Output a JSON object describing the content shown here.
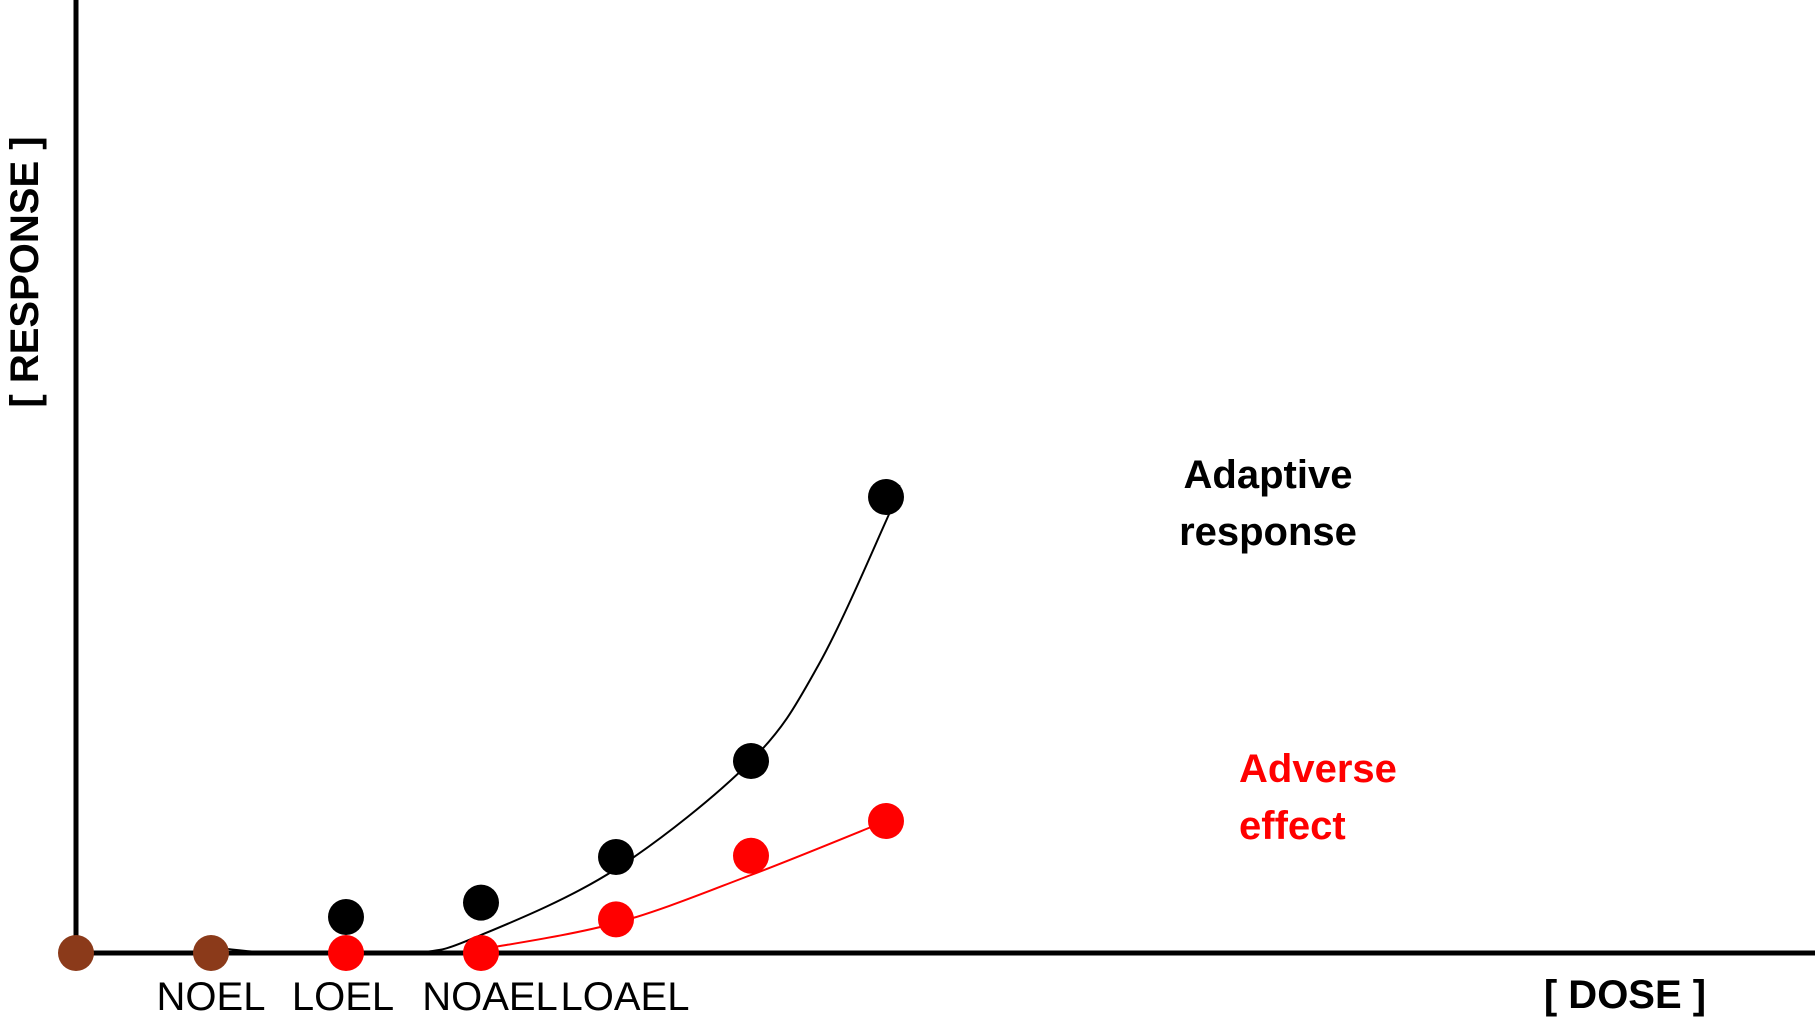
{
  "chart_data": {
    "type": "scatter",
    "title": "",
    "xlabel": "[ DOSE ]",
    "ylabel": "[ RESPONSE ]",
    "x_tick_labels": [
      {
        "label": "NOEL",
        "x": 1
      },
      {
        "label": "LOEL",
        "x": 2
      },
      {
        "label": "NOAEL",
        "x": 3
      },
      {
        "label": "LOAEL",
        "x": 4
      }
    ],
    "xlim": [
      0,
      12
    ],
    "ylim": [
      0,
      10
    ],
    "grid": false,
    "colors": {
      "baseline": "#8b3a1a",
      "adaptive": "#000000",
      "adverse": "#ff0000"
    },
    "series": [
      {
        "name": "",
        "color": "#8b3a1a",
        "points": [
          [
            0,
            0
          ],
          [
            1,
            0
          ]
        ]
      },
      {
        "name": "Adaptive response",
        "label_lines": [
          "Adaptive",
          "response"
        ],
        "color": "#000000",
        "points": [
          [
            2,
            0.3
          ],
          [
            3,
            0.42
          ],
          [
            4,
            0.8
          ],
          [
            5,
            1.6
          ],
          [
            6,
            3.8
          ]
        ],
        "curve": [
          [
            1,
            0.05
          ],
          [
            1.5,
            0
          ],
          [
            2.5,
            0
          ],
          [
            3,
            0.15
          ],
          [
            4,
            0.7
          ],
          [
            5,
            1.6
          ],
          [
            5.5,
            2.4
          ],
          [
            6,
            3.6
          ],
          [
            6.1,
            3.9
          ]
        ]
      },
      {
        "name": "Adverse effect",
        "label_lines": [
          "Adverse",
          "effect"
        ],
        "color": "#ff0000",
        "points": [
          [
            2,
            0
          ],
          [
            3,
            0
          ],
          [
            4,
            0.28
          ],
          [
            5,
            0.81
          ],
          [
            6,
            1.1
          ]
        ],
        "curve": [
          [
            3,
            0.03
          ],
          [
            4,
            0.25
          ],
          [
            5,
            0.65
          ],
          [
            6,
            1.1
          ]
        ]
      }
    ]
  }
}
